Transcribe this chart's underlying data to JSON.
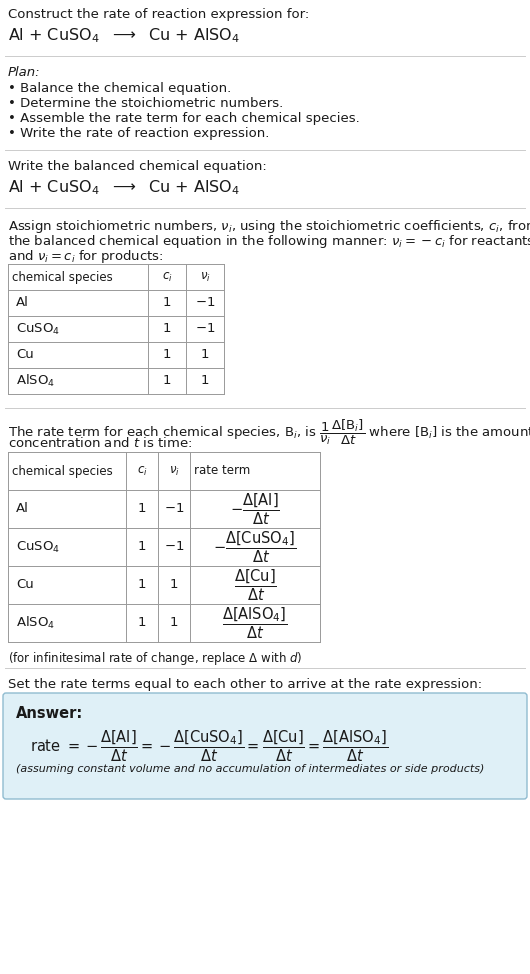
{
  "title_text": "Construct the rate of reaction expression for:",
  "reaction_equation": "Al + CuSO$_4$  $\\longrightarrow$  Cu + AlSO$_4$",
  "plan_header": "Plan:",
  "plan_items": [
    "• Balance the chemical equation.",
    "• Determine the stoichiometric numbers.",
    "• Assemble the rate term for each chemical species.",
    "• Write the rate of reaction expression."
  ],
  "balanced_eq_header": "Write the balanced chemical equation:",
  "balanced_eq": "Al + CuSO$_4$  $\\longrightarrow$  Cu + AlSO$_4$",
  "stoich_text1": "Assign stoichiometric numbers, $\\nu_i$, using the stoichiometric coefficients, $c_i$, from",
  "stoich_text2": "the balanced chemical equation in the following manner: $\\nu_i = -c_i$ for reactants",
  "stoich_text3": "and $\\nu_i = c_i$ for products:",
  "table1_headers": [
    "chemical species",
    "$c_i$",
    "$\\nu_i$"
  ],
  "table1_data": [
    [
      "Al",
      "1",
      "$-1$"
    ],
    [
      "CuSO$_4$",
      "1",
      "$-1$"
    ],
    [
      "Cu",
      "1",
      "1"
    ],
    [
      "AlSO$_4$",
      "1",
      "1"
    ]
  ],
  "rate_term_text1": "The rate term for each chemical species, B$_i$, is $\\dfrac{1}{\\nu_i}\\dfrac{\\Delta[\\mathrm{B}_i]}{\\Delta t}$ where [B$_i$] is the amount",
  "rate_term_text2": "concentration and $t$ is time:",
  "table2_headers": [
    "chemical species",
    "$c_i$",
    "$\\nu_i$",
    "rate term"
  ],
  "table2_data": [
    [
      "Al",
      "1",
      "$-1$",
      "$-\\dfrac{\\Delta[\\mathrm{Al}]}{\\Delta t}$"
    ],
    [
      "CuSO$_4$",
      "1",
      "$-1$",
      "$-\\dfrac{\\Delta[\\mathrm{CuSO_4}]}{\\Delta t}$"
    ],
    [
      "Cu",
      "1",
      "1",
      "$\\dfrac{\\Delta[\\mathrm{Cu}]}{\\Delta t}$"
    ],
    [
      "AlSO$_4$",
      "1",
      "1",
      "$\\dfrac{\\Delta[\\mathrm{AlSO_4}]}{\\Delta t}$"
    ]
  ],
  "infinitesimal_note": "(for infinitesimal rate of change, replace Δ with $d$)",
  "set_equal_text": "Set the rate terms equal to each other to arrive at the rate expression:",
  "answer_label": "Answer:",
  "answer_rate_eq": "rate $= -\\dfrac{\\Delta[\\mathrm{Al}]}{\\Delta t} = -\\dfrac{\\Delta[\\mathrm{CuSO_4}]}{\\Delta t} = \\dfrac{\\Delta[\\mathrm{Cu}]}{\\Delta t} = \\dfrac{\\Delta[\\mathrm{AlSO_4}]}{\\Delta t}$",
  "answer_note": "(assuming constant volume and no accumulation of intermediates or side products)",
  "bg_color": "#ffffff",
  "answer_box_color": "#dff0f7",
  "answer_box_border": "#90bcd0",
  "text_color": "#1a1a1a",
  "table_border_color": "#999999",
  "hline_color": "#cccccc",
  "font_size": 9.5,
  "small_font_size": 8.5,
  "reaction_font_size": 11.5
}
